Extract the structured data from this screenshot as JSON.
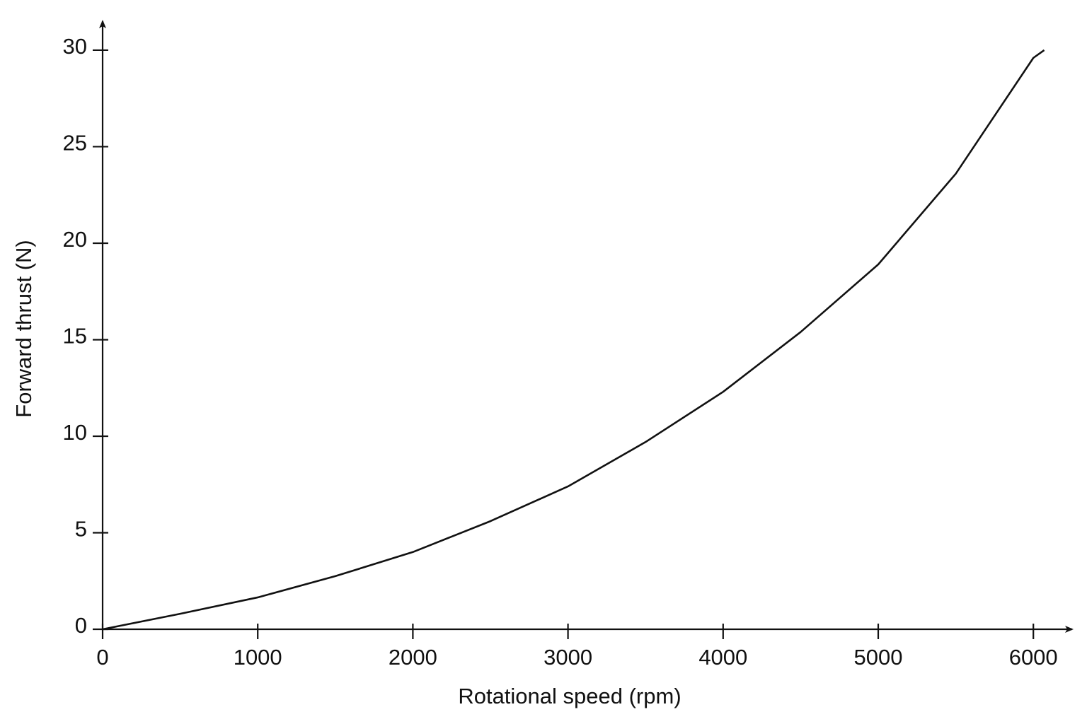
{
  "chart_data": {
    "type": "line",
    "x_label": "Rotational speed (rpm)",
    "y_label": "Forward thrust (N)",
    "xlim": [
      0,
      6250
    ],
    "ylim": [
      0,
      31.5
    ],
    "xticks": [
      0,
      1000,
      2000,
      3000,
      4000,
      5000,
      6000
    ],
    "yticks": [
      0,
      5,
      10,
      15,
      20,
      25,
      30
    ],
    "grid": false,
    "series": [
      {
        "color": "#111111",
        "x": [
          0,
          500,
          1000,
          1500,
          2000,
          2500,
          3000,
          3500,
          4000,
          4500,
          5000,
          5500,
          6000,
          6070
        ],
        "values": [
          0,
          0.8,
          1.65,
          2.75,
          4.0,
          5.6,
          7.4,
          9.7,
          12.3,
          15.4,
          18.9,
          23.6,
          29.6,
          30
        ]
      }
    ]
  }
}
